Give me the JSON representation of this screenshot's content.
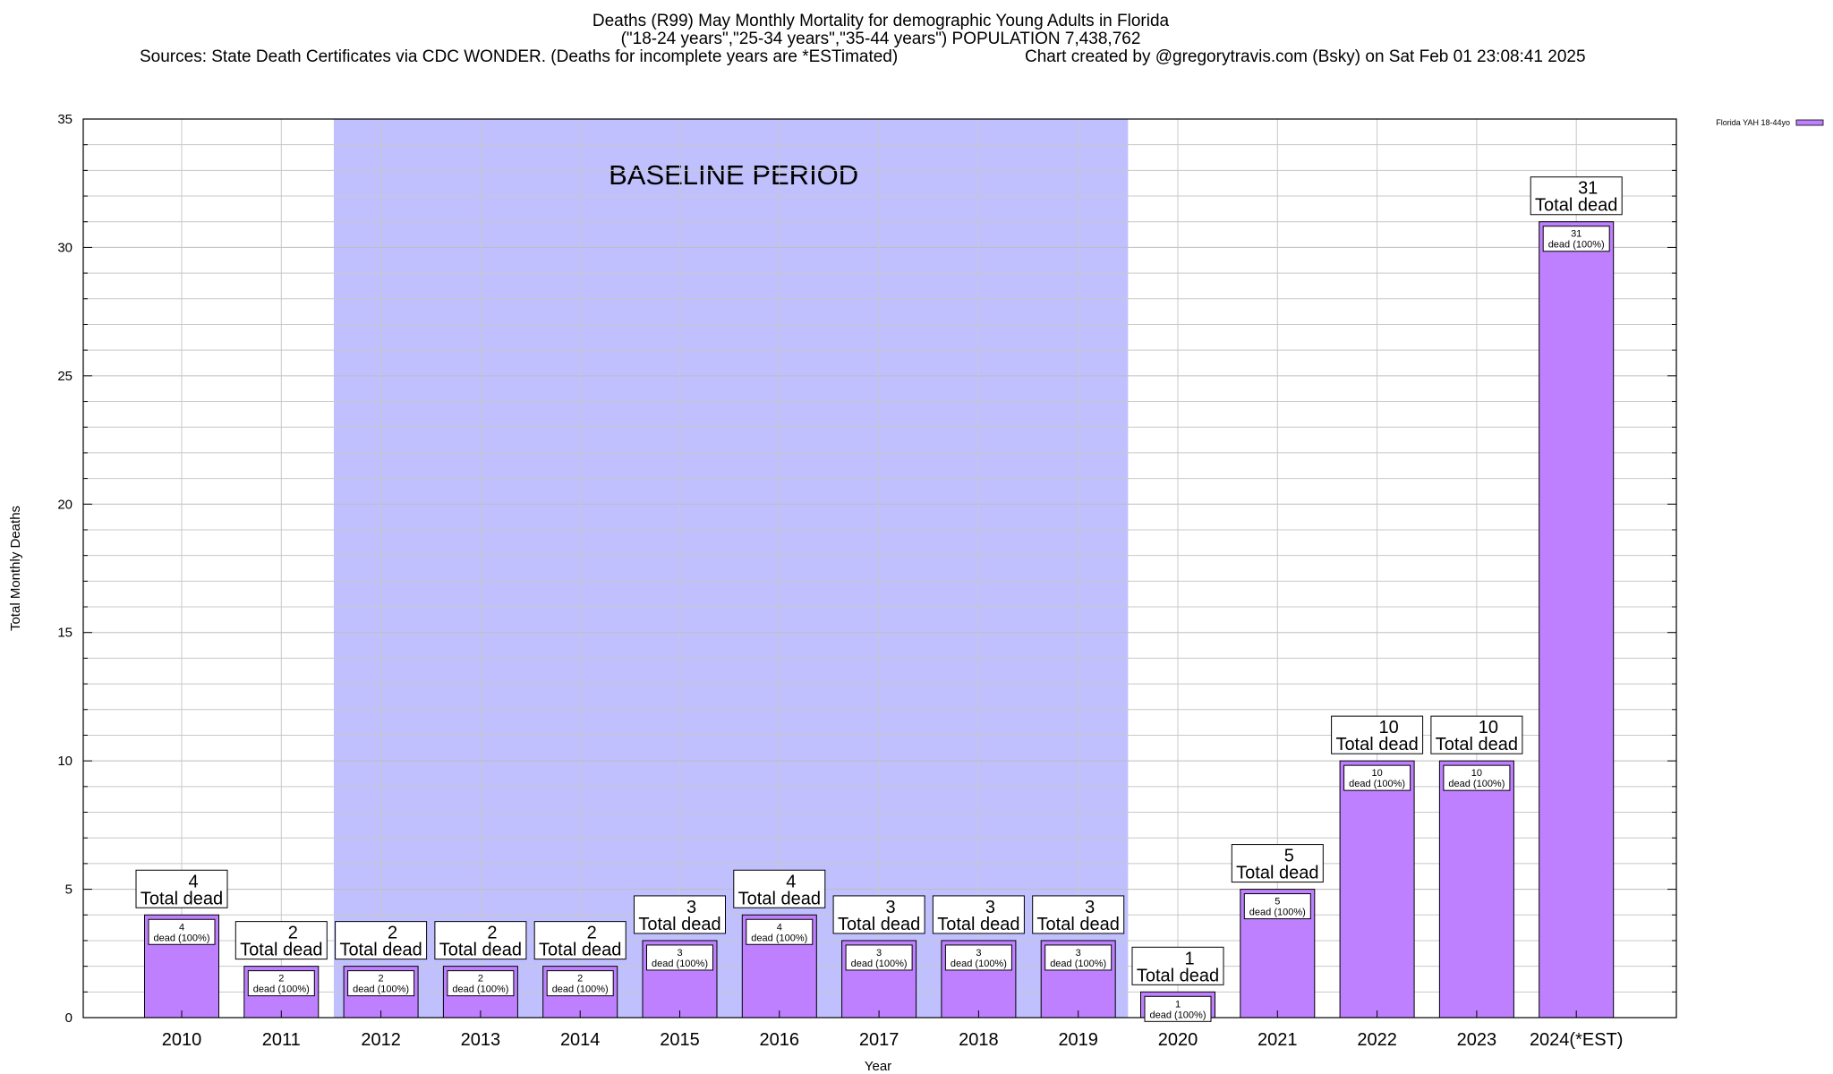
{
  "title": {
    "line1": "Deaths (R99) May Monthly Mortality for demographic Young Adults in Florida",
    "line2": "(\"18-24 years\",\"25-34 years\",\"35-44 years\") POPULATION 7,438,762",
    "sources": "Sources: State Death Certificates via CDC WONDER. (Deaths for incomplete years are *ESTimated)",
    "credit": "Chart created by @gregorytravis.com (Bsky) on Sat Feb 01 23:08:41 2025"
  },
  "chart_data": {
    "type": "bar",
    "categories": [
      "2010",
      "2011",
      "2012",
      "2013",
      "2014",
      "2015",
      "2016",
      "2017",
      "2018",
      "2019",
      "2020",
      "2021",
      "2022",
      "2023",
      "2024(*EST)"
    ],
    "series": [
      {
        "name": "Florida YAH 18-44yo",
        "values": [
          4,
          2,
          2,
          2,
          2,
          3,
          4,
          3,
          3,
          3,
          1,
          5,
          10,
          10,
          31
        ]
      }
    ],
    "xlabel": "Year",
    "ylabel": "Total Monthly Deaths",
    "ylim": [
      0,
      35
    ],
    "yticks": [
      0,
      5,
      10,
      15,
      20,
      25,
      30,
      35
    ],
    "grid": true,
    "legend": "top-right",
    "total_label_suffix": "Total dead",
    "inner_label_suffix": "dead (100%)",
    "baseline": {
      "label": "BASELINE PERIOD",
      "from": "2012",
      "to": "2019"
    },
    "colors": {
      "bar": "#bf80ff",
      "baseline": "#c0c0ff",
      "grid": "#c8c8c8"
    }
  }
}
